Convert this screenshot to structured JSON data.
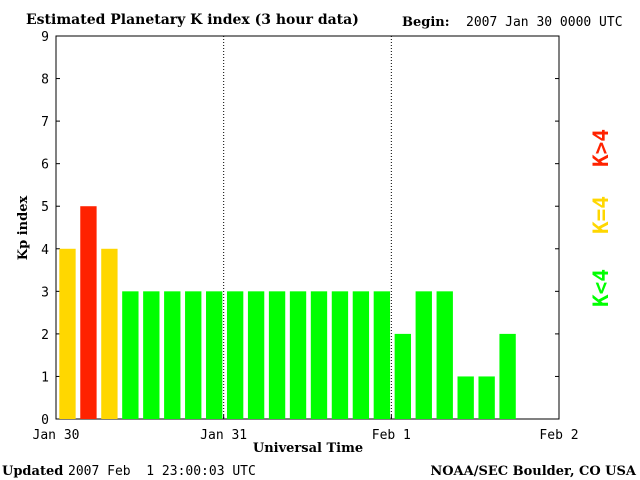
{
  "chart_data": {
    "type": "bar",
    "title": "Estimated Planetary K index (3 hour data)",
    "begin_label": "Begin:",
    "begin_value": "2007 Jan 30 0000 UTC",
    "ylabel": "Kp index",
    "xlabel": "Universal Time",
    "ylim": [
      0,
      9
    ],
    "y_ticks": [
      "0",
      "1",
      "2",
      "3",
      "4",
      "5",
      "6",
      "7",
      "8",
      "9"
    ],
    "x_tick_labels": [
      "Jan 30",
      "Jan 31",
      "Feb 1",
      "Feb 2"
    ],
    "slots_per_day": 8,
    "days": 3,
    "values": [
      4,
      5,
      4,
      3,
      3,
      3,
      3,
      3,
      3,
      3,
      3,
      3,
      3,
      3,
      3,
      3,
      2,
      3,
      3,
      1,
      1,
      2
    ],
    "legend": [
      {
        "label": "K<4",
        "color": "#00ff00"
      },
      {
        "label": "K=4",
        "color": "#ffd700"
      },
      {
        "label": "K>4",
        "color": "#ff2200"
      }
    ],
    "colors": {
      "low": "#00ff00",
      "equal": "#ffd700",
      "high": "#ff2200"
    }
  },
  "footer": {
    "updated_label": "Updated",
    "updated_value": "2007 Feb  1 23:00:03 UTC",
    "source": "NOAA/SEC Boulder, CO USA"
  }
}
